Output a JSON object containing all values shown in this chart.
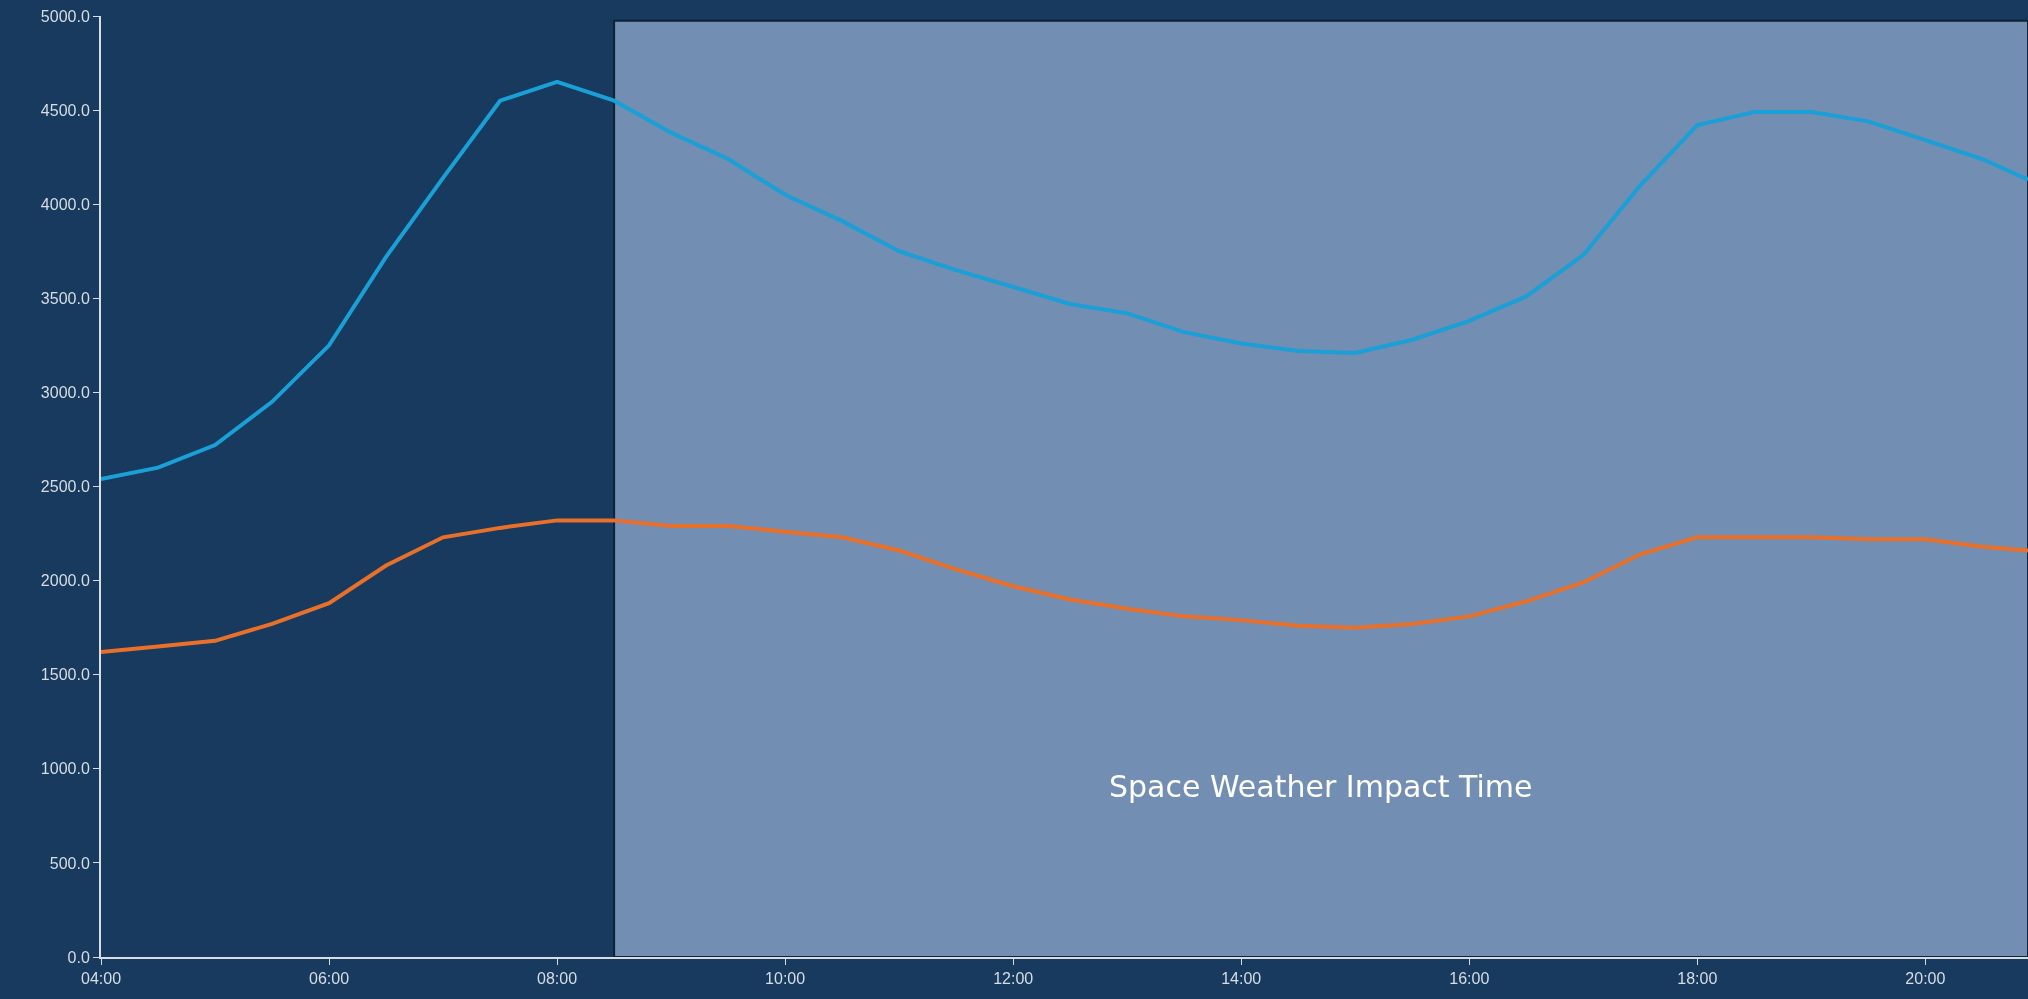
{
  "chart_data": {
    "type": "line",
    "x": [
      4,
      4.5,
      5,
      5.5,
      6,
      6.5,
      7,
      7.5,
      8,
      8.5,
      9,
      9.5,
      10,
      10.5,
      11,
      11.5,
      12,
      12.5,
      13,
      13.5,
      14,
      14.5,
      15,
      15.5,
      16,
      16.5,
      17,
      17.5,
      18,
      18.5,
      19,
      19.5,
      20,
      20.5,
      20.9
    ],
    "series": [
      {
        "color": "#1a9fd6",
        "values": [
          2540,
          2600,
          2720,
          2950,
          3250,
          3720,
          4140,
          4550,
          4650,
          4550,
          4380,
          4240,
          4050,
          3910,
          3750,
          3650,
          3560,
          3470,
          3420,
          3320,
          3260,
          3220,
          3210,
          3280,
          3380,
          3510,
          3730,
          4100,
          4420,
          4490,
          4490,
          4440,
          4340,
          4240,
          4130
        ]
      },
      {
        "color": "#e8702a",
        "values": [
          1620,
          1650,
          1680,
          1770,
          1880,
          2080,
          2230,
          2280,
          2320,
          2320,
          2290,
          2290,
          2260,
          2230,
          2160,
          2060,
          1970,
          1900,
          1850,
          1810,
          1790,
          1760,
          1750,
          1770,
          1810,
          1890,
          1990,
          2140,
          2230,
          2230,
          2230,
          2220,
          2220,
          2180,
          2160
        ]
      }
    ],
    "xlim": [
      4,
      20.9
    ],
    "xticks": [
      {
        "value": 4,
        "label": "04:00"
      },
      {
        "value": 6,
        "label": "06:00"
      },
      {
        "value": 8,
        "label": "08:00"
      },
      {
        "value": 10,
        "label": "10:00"
      },
      {
        "value": 12,
        "label": "12:00"
      },
      {
        "value": 14,
        "label": "14:00"
      },
      {
        "value": 16,
        "label": "16:00"
      },
      {
        "value": 18,
        "label": "18:00"
      },
      {
        "value": 20,
        "label": "20:00"
      }
    ],
    "ylim": [
      0,
      5000
    ],
    "yticks": [
      {
        "value": 0,
        "label": "0.0"
      },
      {
        "value": 500,
        "label": "500.0"
      },
      {
        "value": 1000,
        "label": "1000.0"
      },
      {
        "value": 1500,
        "label": "1500.0"
      },
      {
        "value": 2000,
        "label": "2000.0"
      },
      {
        "value": 2500,
        "label": "2500.0"
      },
      {
        "value": 3000,
        "label": "3000.0"
      },
      {
        "value": 3500,
        "label": "3500.0"
      },
      {
        "value": 4000,
        "label": "4000.0"
      },
      {
        "value": 4500,
        "label": "4500.0"
      },
      {
        "value": 5000,
        "label": "5000.0"
      }
    ],
    "bands": [
      {
        "axis": "x",
        "from": 8.5,
        "to": 20.9,
        "label": "Space Weather Impact Time",
        "color": "#728eb2"
      }
    ],
    "grid": false,
    "marker": "none",
    "line_style": "solid"
  }
}
